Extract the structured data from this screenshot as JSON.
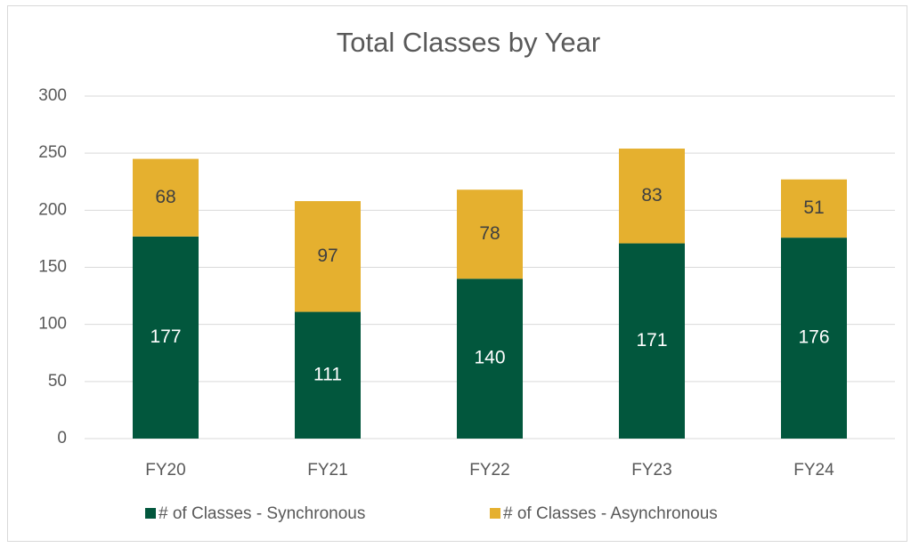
{
  "chart_data": {
    "type": "stacked_bar",
    "title": "Total Classes by Year",
    "categories": [
      "FY20",
      "FY21",
      "FY22",
      "FY23",
      "FY24"
    ],
    "series": [
      {
        "name": "# of Classes - Synchronous",
        "color": "#02573d",
        "values": [
          177,
          111,
          140,
          171,
          176
        ]
      },
      {
        "name": "# of Classes - Asynchronous",
        "color": "#e5b02f",
        "values": [
          68,
          97,
          78,
          83,
          51
        ]
      }
    ],
    "ylim": [
      0,
      300
    ],
    "yticks": [
      0,
      50,
      100,
      150,
      200,
      250,
      300
    ],
    "grid": true,
    "legend": "bottom"
  }
}
